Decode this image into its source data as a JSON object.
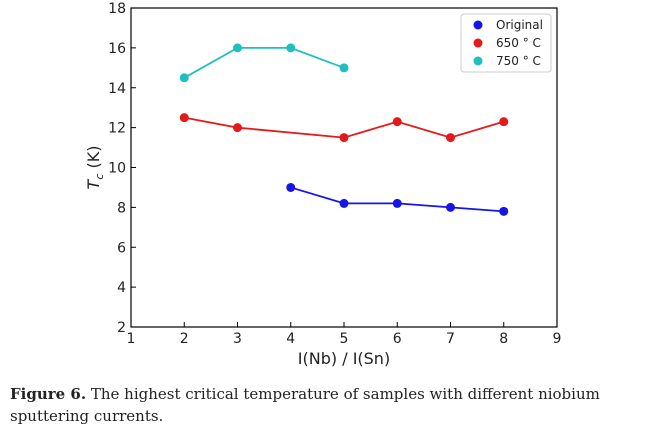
{
  "chart_data": {
    "type": "line",
    "xlabel": "I(Nb) / I(Sn)",
    "ylabel_main": "T",
    "ylabel_sub": "c",
    "ylabel_unit": "(K)",
    "xlim": [
      1,
      9
    ],
    "ylim": [
      2,
      18
    ],
    "xticks": [
      1,
      2,
      3,
      4,
      5,
      6,
      7,
      8,
      9
    ],
    "yticks": [
      2,
      4,
      6,
      8,
      10,
      12,
      14,
      16,
      18
    ],
    "grid": false,
    "legend_position": "top-right",
    "series": [
      {
        "name": "Original",
        "color": "#1515e6",
        "x": [
          4,
          5,
          6,
          7,
          8
        ],
        "y": [
          9.0,
          8.2,
          8.2,
          8.0,
          7.8
        ]
      },
      {
        "name": "650  ° C",
        "color": "#e41a1a",
        "x": [
          2,
          3,
          5,
          6,
          7,
          8
        ],
        "y": [
          12.5,
          12.0,
          11.5,
          12.3,
          11.5,
          12.3
        ]
      },
      {
        "name": "750  ° C",
        "color": "#1fbfbf",
        "x": [
          2,
          3,
          4,
          5
        ],
        "y": [
          14.5,
          16.0,
          16.0,
          15.0
        ]
      }
    ]
  },
  "caption": {
    "label": "Figure 6.",
    "text": " The highest critical temperature of samples with different niobium sputtering currents."
  }
}
